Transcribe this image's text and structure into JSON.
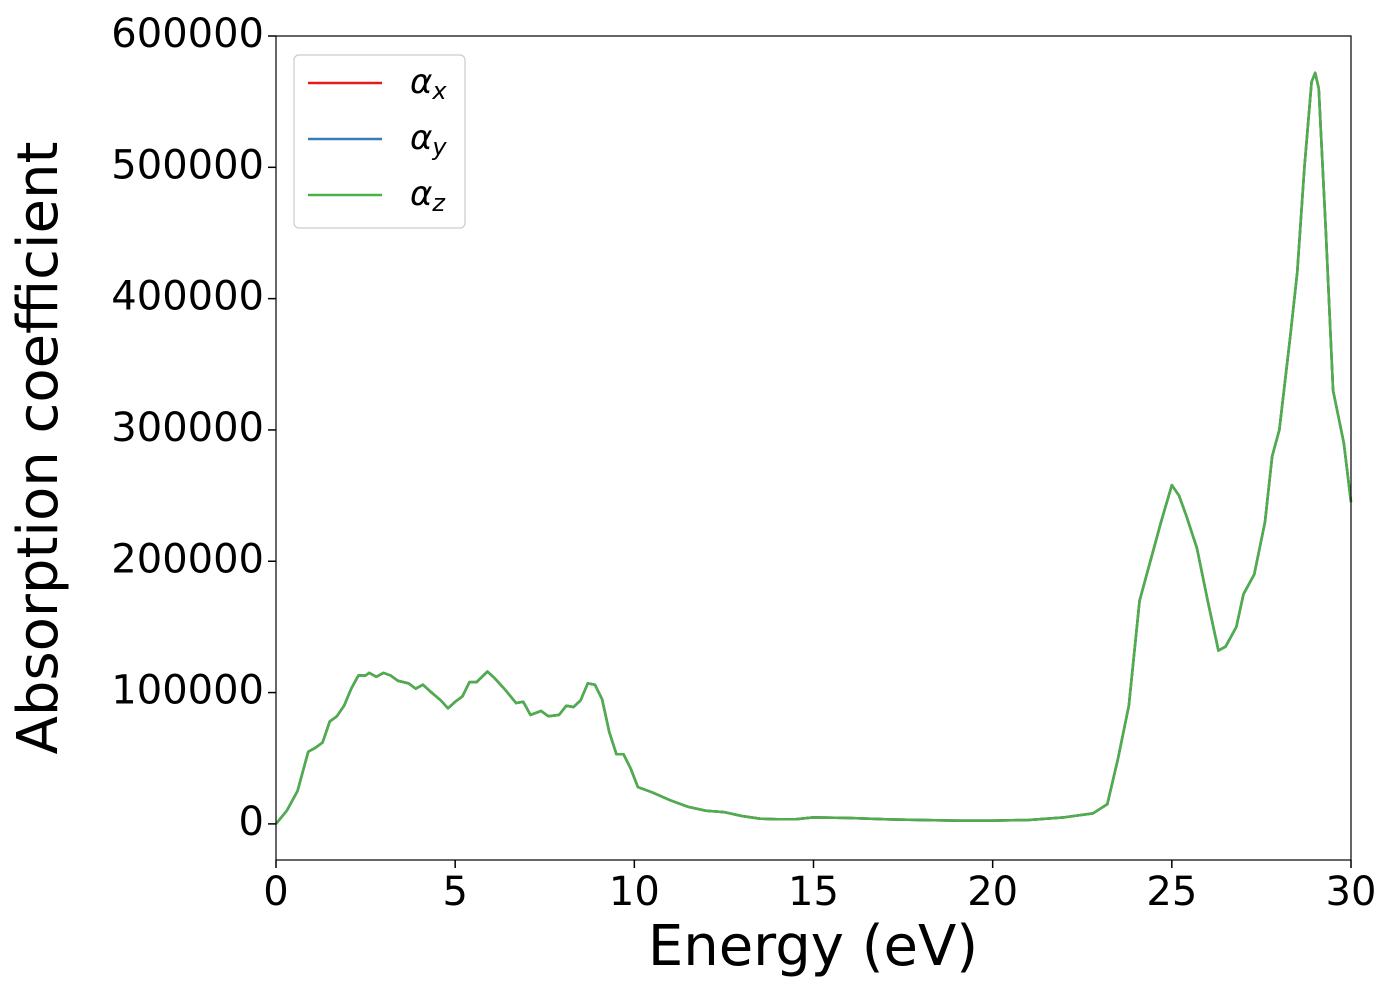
{
  "chart_data": {
    "type": "line",
    "x_label": "Energy (eV)",
    "y_label": "Absorption coefficient",
    "x": [
      0,
      0.3,
      0.6,
      0.8,
      0.9,
      1.1,
      1.3,
      1.5,
      1.7,
      1.9,
      2.1,
      2.3,
      2.5,
      2.6,
      2.8,
      3.0,
      3.2,
      3.4,
      3.7,
      3.9,
      4.1,
      4.3,
      4.6,
      4.8,
      5.0,
      5.2,
      5.4,
      5.6,
      5.9,
      6.1,
      6.4,
      6.7,
      6.9,
      7.1,
      7.4,
      7.6,
      7.9,
      8.1,
      8.3,
      8.5,
      8.7,
      8.9,
      9.1,
      9.3,
      9.5,
      9.7,
      9.9,
      10.1,
      10.5,
      11,
      11.5,
      12,
      12.5,
      13,
      13.5,
      14,
      14.5,
      15,
      16,
      17,
      18,
      19,
      20,
      21,
      22,
      22.8,
      23.2,
      23.5,
      23.8,
      24.1,
      24.4,
      24.7,
      25.0,
      25.2,
      25.4,
      25.7,
      26.0,
      26.3,
      26.5,
      26.8,
      27.0,
      27.3,
      27.6,
      27.8,
      28.0,
      28.3,
      28.5,
      28.7,
      28.9,
      29.0,
      29.1,
      29.3,
      29.5,
      29.8,
      30
    ],
    "series": [
      {
        "name": "αx",
        "color": "#e41a1c",
        "values": [
          0,
          10000,
          25000,
          45000,
          55000,
          58000,
          62000,
          78000,
          82000,
          90000,
          103000,
          113000,
          113000,
          115000,
          112000,
          115000,
          113000,
          109000,
          107000,
          103000,
          106000,
          101000,
          94000,
          88000,
          93000,
          97000,
          108000,
          108000,
          116000,
          111000,
          102000,
          92000,
          93000,
          83000,
          86000,
          82000,
          83000,
          90000,
          89000,
          94000,
          107000,
          106000,
          95000,
          70000,
          53000,
          53000,
          42000,
          28000,
          24000,
          18000,
          13000,
          10000,
          9000,
          6000,
          4000,
          3500,
          3500,
          5000,
          4500,
          3500,
          3000,
          2500,
          2500,
          3000,
          5000,
          8000,
          15000,
          50000,
          90000,
          170000,
          200000,
          230000,
          258000,
          250000,
          235000,
          210000,
          170000,
          132000,
          135000,
          150000,
          175000,
          190000,
          230000,
          280000,
          300000,
          370000,
          420000,
          500000,
          565000,
          572000,
          560000,
          450000,
          330000,
          290000,
          245000
        ]
      },
      {
        "name": "αy",
        "color": "#377eb8",
        "values": [
          0,
          10000,
          25000,
          45000,
          55000,
          58000,
          62000,
          78000,
          82000,
          90000,
          103000,
          113000,
          113000,
          115000,
          112000,
          115000,
          113000,
          109000,
          107000,
          103000,
          106000,
          101000,
          94000,
          88000,
          93000,
          97000,
          108000,
          108000,
          116000,
          111000,
          102000,
          92000,
          93000,
          83000,
          86000,
          82000,
          83000,
          90000,
          89000,
          94000,
          107000,
          106000,
          95000,
          70000,
          53000,
          53000,
          42000,
          28000,
          24000,
          18000,
          13000,
          10000,
          9000,
          6000,
          4000,
          3500,
          3500,
          5000,
          4500,
          3500,
          3000,
          2500,
          2500,
          3000,
          5000,
          8000,
          15000,
          50000,
          90000,
          170000,
          200000,
          230000,
          258000,
          250000,
          235000,
          210000,
          170000,
          132000,
          135000,
          150000,
          175000,
          190000,
          230000,
          280000,
          300000,
          370000,
          420000,
          500000,
          565000,
          572000,
          560000,
          450000,
          330000,
          290000,
          245000
        ]
      },
      {
        "name": "αz",
        "color": "#4daf4a",
        "values": [
          0,
          10000,
          25000,
          45000,
          55000,
          58000,
          62000,
          78000,
          82000,
          90000,
          103000,
          113000,
          113000,
          115000,
          112000,
          115000,
          113000,
          109000,
          107000,
          103000,
          106000,
          101000,
          94000,
          88000,
          93000,
          97000,
          108000,
          108000,
          116000,
          111000,
          102000,
          92000,
          93000,
          83000,
          86000,
          82000,
          83000,
          90000,
          89000,
          94000,
          107000,
          106000,
          95000,
          70000,
          53000,
          53000,
          42000,
          28000,
          24000,
          18000,
          13000,
          10000,
          9000,
          6000,
          4000,
          3500,
          3500,
          5000,
          4500,
          3500,
          3000,
          2500,
          2500,
          3000,
          5000,
          8000,
          15000,
          50000,
          90000,
          170000,
          200000,
          230000,
          258000,
          250000,
          235000,
          210000,
          170000,
          132000,
          135000,
          150000,
          175000,
          190000,
          230000,
          280000,
          300000,
          370000,
          420000,
          500000,
          565000,
          572000,
          560000,
          450000,
          330000,
          290000,
          245000
        ]
      }
    ],
    "xlim": [
      0,
      30
    ],
    "xticks": [
      0,
      5,
      10,
      15,
      20,
      25,
      30
    ],
    "ylim": [
      -27500,
      600000
    ],
    "yticks": [
      0,
      100000,
      200000,
      300000,
      400000,
      500000,
      600000
    ],
    "legend": "upper left"
  }
}
